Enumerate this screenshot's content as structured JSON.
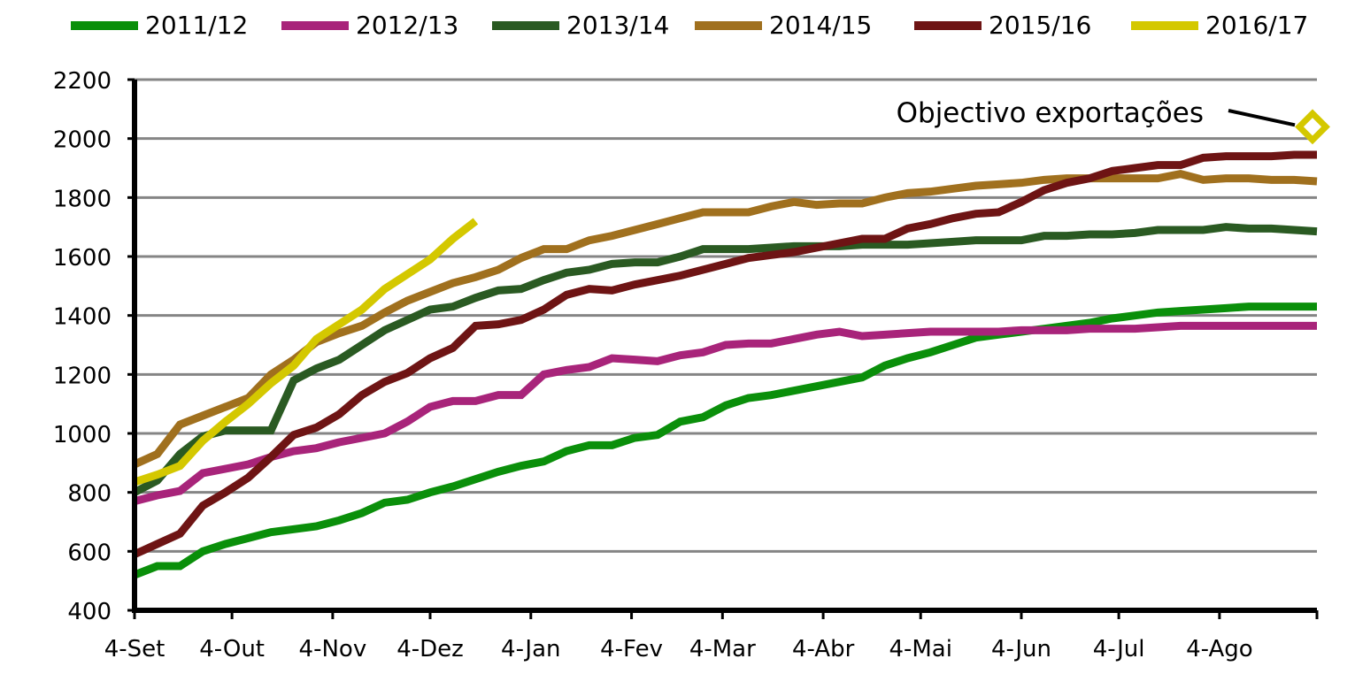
{
  "chart_data": {
    "type": "line",
    "title": "",
    "xlabel": "",
    "ylabel": "",
    "ylim": [
      400,
      2200
    ],
    "y_ticks": [
      400,
      600,
      800,
      1000,
      1200,
      1400,
      1600,
      1800,
      2000,
      2200
    ],
    "x_tick_labels": [
      "4-Set",
      "4-Out",
      "4-Nov",
      "4-Dez",
      "4-Jan",
      "4-Fev",
      "4-Mar",
      "4-Abr",
      "4-Mai",
      "4-Jun",
      "4-Jul",
      "4-Ago"
    ],
    "x_frequency": "weekly",
    "grid": true,
    "legend_position": "top",
    "series": [
      {
        "name": "2011/12",
        "color": "#0a8f0a",
        "values": [
          520,
          550,
          550,
          600,
          625,
          645,
          665,
          675,
          685,
          705,
          730,
          765,
          775,
          800,
          820,
          845,
          870,
          890,
          905,
          940,
          960,
          960,
          985,
          995,
          1040,
          1055,
          1095,
          1120,
          1130,
          1145,
          1160,
          1175,
          1190,
          1230,
          1255,
          1275,
          1300,
          1325,
          1335,
          1345,
          1355,
          1365,
          1375,
          1390,
          1400,
          1410,
          1415,
          1420,
          1425,
          1430,
          1430,
          1430,
          1430
        ]
      },
      {
        "name": "2012/13",
        "color": "#a8247a",
        "values": [
          770,
          790,
          805,
          865,
          880,
          895,
          920,
          940,
          950,
          970,
          985,
          1000,
          1040,
          1090,
          1110,
          1110,
          1130,
          1130,
          1200,
          1215,
          1225,
          1255,
          1250,
          1245,
          1265,
          1275,
          1300,
          1305,
          1305,
          1320,
          1335,
          1345,
          1330,
          1335,
          1340,
          1345,
          1345,
          1345,
          1345,
          1350,
          1350,
          1350,
          1355,
          1355,
          1355,
          1360,
          1365,
          1365,
          1365,
          1365,
          1365,
          1365,
          1365
        ]
      },
      {
        "name": "2013/14",
        "color": "#2a5a22",
        "values": [
          800,
          840,
          930,
          990,
          1010,
          1010,
          1010,
          1180,
          1220,
          1250,
          1300,
          1350,
          1385,
          1420,
          1430,
          1460,
          1485,
          1490,
          1520,
          1545,
          1555,
          1575,
          1580,
          1580,
          1600,
          1625,
          1625,
          1625,
          1630,
          1635,
          1635,
          1635,
          1640,
          1640,
          1640,
          1645,
          1650,
          1655,
          1655,
          1655,
          1670,
          1670,
          1675,
          1675,
          1680,
          1690,
          1690,
          1690,
          1700,
          1695,
          1695,
          1690,
          1685
        ]
      },
      {
        "name": "2014/15",
        "color": "#a0701e",
        "values": [
          895,
          930,
          1030,
          1060,
          1090,
          1120,
          1200,
          1250,
          1310,
          1340,
          1365,
          1410,
          1450,
          1480,
          1510,
          1530,
          1555,
          1595,
          1625,
          1625,
          1655,
          1670,
          1690,
          1710,
          1730,
          1750,
          1750,
          1750,
          1770,
          1785,
          1775,
          1780,
          1780,
          1800,
          1815,
          1820,
          1830,
          1840,
          1845,
          1850,
          1860,
          1865,
          1865,
          1865,
          1865,
          1865,
          1880,
          1860,
          1865,
          1865,
          1860,
          1860,
          1855
        ]
      },
      {
        "name": "2015/16",
        "color": "#6e1414",
        "values": [
          590,
          625,
          660,
          755,
          800,
          850,
          920,
          995,
          1020,
          1065,
          1130,
          1175,
          1205,
          1255,
          1290,
          1365,
          1370,
          1385,
          1420,
          1470,
          1490,
          1485,
          1505,
          1520,
          1535,
          1555,
          1575,
          1595,
          1605,
          1615,
          1630,
          1645,
          1660,
          1660,
          1695,
          1710,
          1730,
          1745,
          1750,
          1785,
          1825,
          1850,
          1865,
          1890,
          1900,
          1910,
          1910,
          1935,
          1940,
          1940,
          1940,
          1945,
          1945
        ]
      },
      {
        "name": "2016/17",
        "color": "#d4c800",
        "values": [
          835,
          860,
          890,
          975,
          1040,
          1100,
          1170,
          1230,
          1320,
          1370,
          1420,
          1490,
          1540,
          1590,
          1660,
          1720
        ]
      }
    ],
    "target": {
      "label": "Objectivo exportações",
      "value": 2040,
      "week_index": 52,
      "color": "#d4c800",
      "marker": "diamond"
    }
  }
}
